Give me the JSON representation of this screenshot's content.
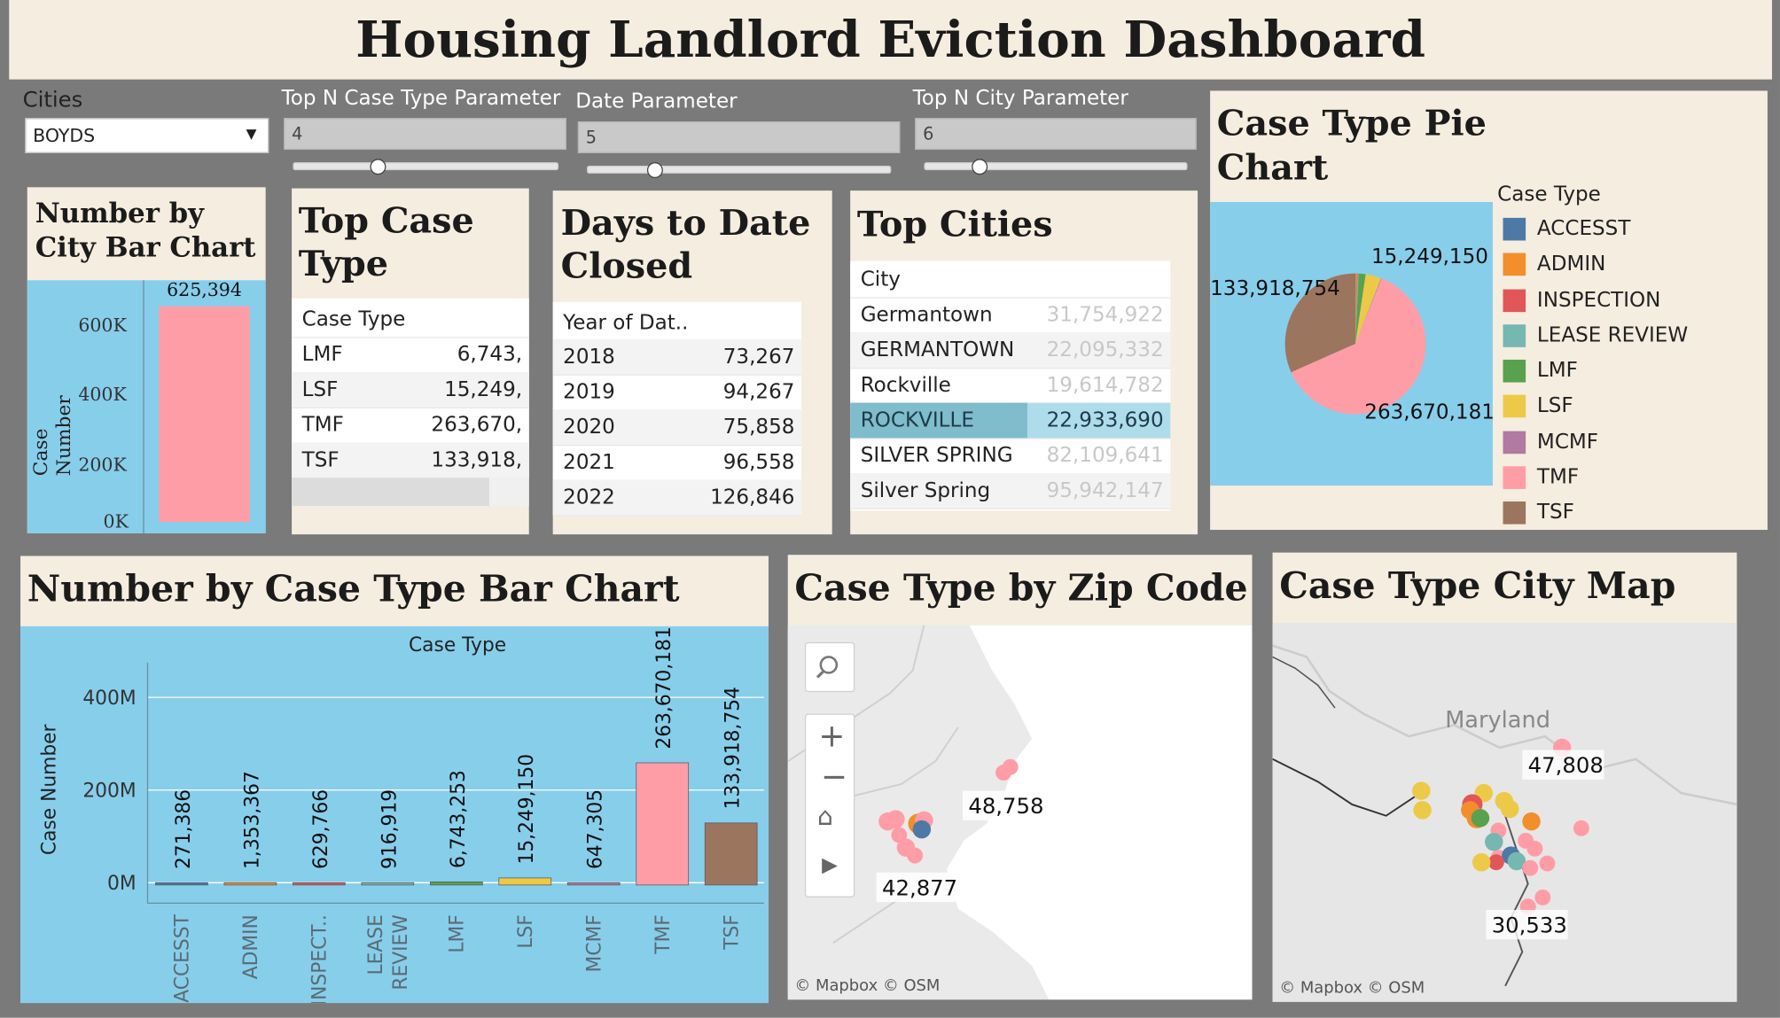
{
  "title": "Housing Landlord Eviction Dashboard",
  "filters": {
    "cities": {
      "label": "Cities",
      "value": "BOYDS"
    },
    "top_n_case": {
      "label": "Top N Case Type Parameter",
      "value": "4",
      "fraction": 0.32
    },
    "date_param": {
      "label": "Date Parameter",
      "value": "5",
      "fraction": 0.22
    },
    "top_n_city": {
      "label": "Top N City Parameter",
      "value": "6",
      "fraction": 0.21
    }
  },
  "city_bar": {
    "title_line1": "Number by",
    "title_line2": "City Bar Chart",
    "ylabel": "Case Number",
    "data_label": "625,394",
    "ticks": [
      "600K",
      "400K",
      "200K",
      "0K"
    ]
  },
  "top_case": {
    "title_line1": "Top Case",
    "title_line2": "Type",
    "header": "Case Type",
    "rows": [
      {
        "k": "LMF",
        "v": "6,743,"
      },
      {
        "k": "LSF",
        "v": "15,249,"
      },
      {
        "k": "TMF",
        "v": "263,670,"
      },
      {
        "k": "TSF",
        "v": "133,918,"
      }
    ]
  },
  "days_closed": {
    "title_line1": "Days to Date",
    "title_line2": "Closed",
    "header": "Year of Dat..",
    "rows": [
      {
        "k": "2018",
        "v": "73,267"
      },
      {
        "k": "2019",
        "v": "94,267"
      },
      {
        "k": "2020",
        "v": "75,858"
      },
      {
        "k": "2021",
        "v": "96,558"
      },
      {
        "k": "2022",
        "v": "126,846"
      }
    ]
  },
  "top_cities": {
    "title": "Top Cities",
    "header": "City",
    "rows": [
      {
        "k": "Germantown",
        "v": "31,754,922"
      },
      {
        "k": "GERMANTOWN",
        "v": "22,095,332"
      },
      {
        "k": "Rockville",
        "v": "19,614,782"
      },
      {
        "k": "ROCKVILLE",
        "v": "22,933,690"
      },
      {
        "k": "SILVER SPRING",
        "v": "82,109,641"
      },
      {
        "k": "Silver Spring",
        "v": "95,942,147"
      }
    ]
  },
  "pie": {
    "title_line1": "Case Type Pie",
    "title_line2": "Chart",
    "legend_title": "Case Type",
    "label_lsf": "15,249,150",
    "label_tsf": "133,918,754",
    "label_tmf": "263,670,181"
  },
  "zip_map": {
    "title": "Case Type by Zip Code",
    "label_a": "48,758",
    "label_b": "42,877",
    "credit": "© Mapbox  © OSM"
  },
  "city_map": {
    "title": "Case Type City Map",
    "region": "Maryland",
    "label_a": "47,808",
    "label_b": "30,533",
    "credit": "© Mapbox  © OSM"
  },
  "colors": {
    "ACCESST": "#4e79a7",
    "ADMIN": "#f28e2b",
    "INSPECTION": "#e15759",
    "LEASE REVIEW": "#76b7b2",
    "LMF": "#59a14f",
    "LSF": "#edc948",
    "MCMF": "#b07aa1",
    "TMF": "#ff9da7",
    "TSF": "#9c755f"
  },
  "chart_data": [
    {
      "type": "bar",
      "title": "Number by City Bar Chart",
      "ylabel": "Case Number",
      "categories": [
        "BOYDS"
      ],
      "values": [
        625394
      ],
      "ylim": [
        0,
        650000
      ],
      "yticks": [
        0,
        200000,
        400000,
        600000
      ]
    },
    {
      "type": "pie",
      "title": "Case Type Pie Chart",
      "legend_title": "Case Type",
      "legend": "right",
      "categories": [
        "ACCESST",
        "ADMIN",
        "INSPECTION",
        "LEASE REVIEW",
        "LMF",
        "LSF",
        "MCMF",
        "TMF",
        "TSF"
      ],
      "values": [
        271386,
        1353367,
        629766,
        916919,
        6743253,
        15249150,
        647305,
        263670181,
        133918754
      ]
    },
    {
      "type": "bar",
      "title": "Number by Case Type Bar Chart",
      "xlabel": "Case Type",
      "ylabel": "Case Number",
      "categories": [
        "ACCESST",
        "ADMIN",
        "INSPECT..",
        "LEASE REVIEW",
        "LMF",
        "LSF",
        "MCMF",
        "TMF",
        "TSF"
      ],
      "values": [
        271386,
        1353367,
        629766,
        916919,
        6743253,
        15249150,
        647305,
        263670181,
        133918754
      ],
      "data_labels": [
        "271,386",
        "1,353,367",
        "629,766",
        "916,919",
        "6,743,253",
        "15,249,150",
        "647,305",
        "263,670,181",
        "133,918,754"
      ],
      "ylim": [
        0,
        480000000
      ],
      "yticks": [
        "0M",
        "200M",
        "400M"
      ],
      "grid": true
    }
  ]
}
